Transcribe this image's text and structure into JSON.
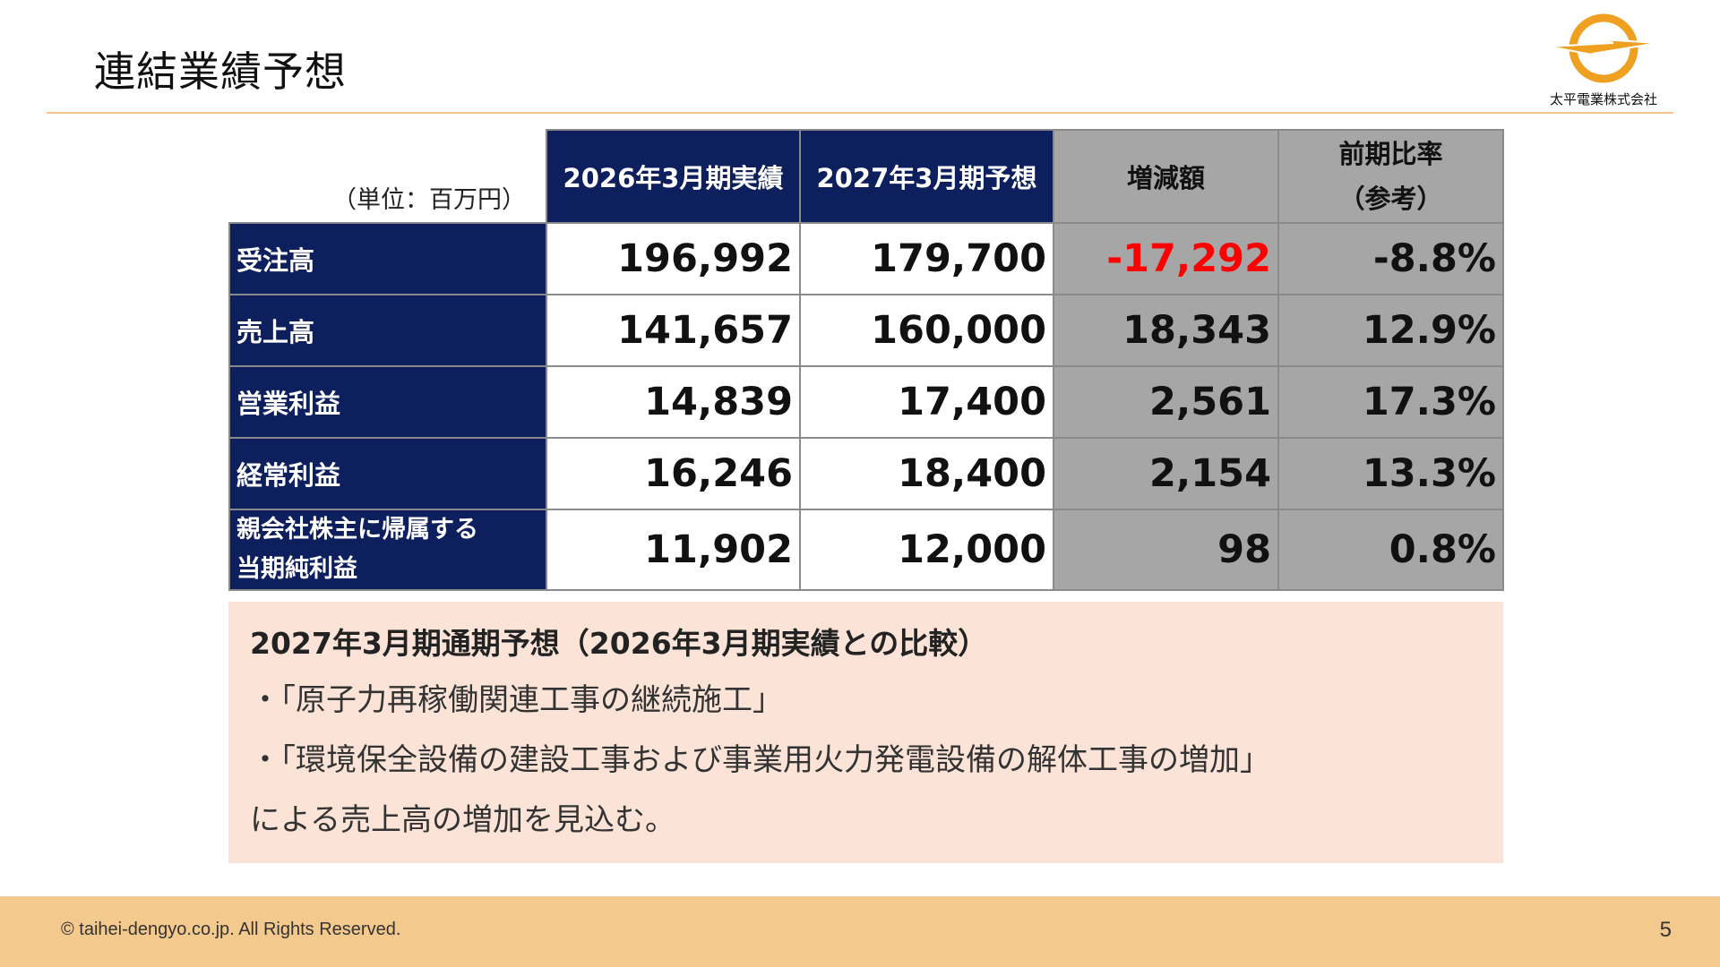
{
  "title": "連結業績予想",
  "company": "太平電業株式会社",
  "table": {
    "unit": "（単位：百万円）",
    "headers": [
      "2026年3月期実績",
      "2027年3月期予想",
      "増減額"
    ],
    "ratio_header_line1": "前期比率",
    "ratio_header_line2": "（参考）",
    "rows": [
      {
        "label": "受注高",
        "actual": "196,992",
        "forecast": "179,700",
        "change": "-17,292",
        "ratio": "-8.8%"
      },
      {
        "label": "売上高",
        "actual": "141,657",
        "forecast": "160,000",
        "change": "18,343",
        "ratio": "12.9%"
      },
      {
        "label": "営業利益",
        "actual": "14,839",
        "forecast": "17,400",
        "change": "2,561",
        "ratio": "17.3%"
      },
      {
        "label": "経常利益",
        "actual": "16,246",
        "forecast": "18,400",
        "change": "2,154",
        "ratio": "13.3%"
      },
      {
        "label_line1": "親会社株主に帰属する",
        "label_line2": "当期純利益",
        "actual": "11,902",
        "forecast": "12,000",
        "change": "98",
        "ratio": "0.8%"
      }
    ]
  },
  "note": {
    "heading": "2027年3月期通期予想（2026年3月期実績との比較）",
    "bullet1": "・「原子力再稼働関連工事の継続施工」",
    "bullet2": "・「環境保全設備の建設工事および事業用火力発電設備の解体工事の増加」",
    "conclusion": "による売上高の増加を見込む。"
  },
  "footer": {
    "copyright": "© taihei-dengyo.co.jp. All Rights Reserved.",
    "page": "5"
  },
  "colors": {
    "navy": "#0d1f5c",
    "gray": "#a6a6a6",
    "negative": "#ff0000",
    "note_bg": "#fbe4d7",
    "footer_bg": "#f3c98e",
    "logo_orange": "#f0a020"
  }
}
